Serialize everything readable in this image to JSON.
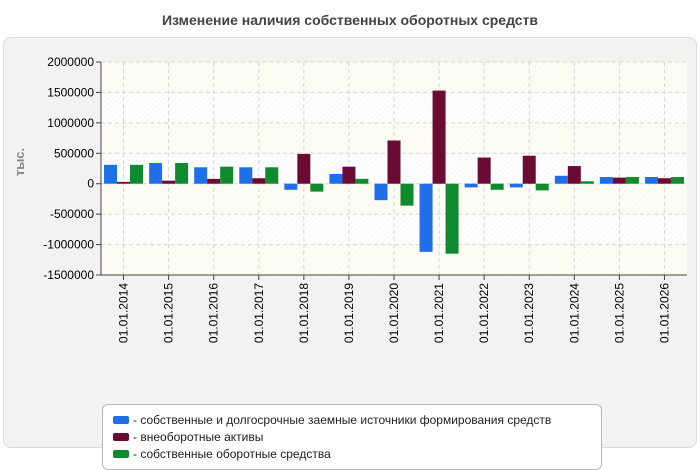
{
  "chart_data": {
    "type": "bar",
    "title": "Изменение наличия собственных оборотных средств",
    "ylabel": "тыс.",
    "xlabel": "",
    "ylim": [
      -1500000,
      2000000
    ],
    "ytick_step": 500000,
    "grid": true,
    "legend_position": "bottom",
    "categories": [
      "01.01.2014",
      "01.01.2015",
      "01.01.2016",
      "01.01.2017",
      "01.01.2018",
      "01.01.2019",
      "01.01.2020",
      "01.01.2021",
      "01.01.2022",
      "01.01.2023",
      "01.01.2024",
      "01.01.2025",
      "01.01.2026"
    ],
    "series": [
      {
        "name": "собственные и долгосрочные заемные источники формирования средств",
        "color": "#1f6fe8",
        "values": [
          310000,
          340000,
          270000,
          270000,
          -100000,
          160000,
          -270000,
          -1120000,
          -60000,
          -60000,
          130000,
          110000,
          110000
        ]
      },
      {
        "name": "внеоборотные активы",
        "color": "#6b0a33",
        "values": [
          30000,
          50000,
          80000,
          90000,
          490000,
          280000,
          710000,
          1530000,
          430000,
          460000,
          290000,
          100000,
          90000
        ]
      },
      {
        "name": "собственные оборотные средства",
        "color": "#0f8a2e",
        "values": [
          310000,
          340000,
          280000,
          270000,
          -130000,
          80000,
          -360000,
          -1150000,
          -100000,
          -110000,
          40000,
          110000,
          110000
        ]
      }
    ]
  }
}
